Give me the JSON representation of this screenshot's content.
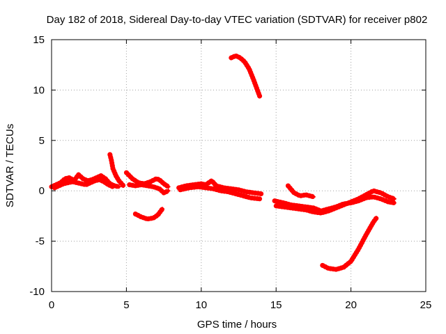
{
  "chart_data": {
    "type": "scatter",
    "title": "Day 182 of 2018, Sidereal Day-to-day VTEC variation (SDTVAR) for receiver p802",
    "xlabel": "GPS time / hours",
    "ylabel": "SDTVAR / TECUs",
    "xlim": [
      0,
      25
    ],
    "ylim": [
      -10,
      15
    ],
    "xticks": [
      0,
      5,
      10,
      15,
      20,
      25
    ],
    "xtick_labels": [
      "0",
      "5",
      "10",
      "15",
      "20",
      "25"
    ],
    "yticks": [
      -10,
      -5,
      0,
      5,
      10,
      15
    ],
    "ytick_labels": [
      "-10",
      "-5",
      "0",
      "5",
      "10",
      "15"
    ],
    "grid": true,
    "color": "#ff0000",
    "series": [
      {
        "name": "track-1",
        "points": [
          [
            0.0,
            0.4
          ],
          [
            0.3,
            0.6
          ],
          [
            0.6,
            0.8
          ],
          [
            0.9,
            1.2
          ],
          [
            1.2,
            1.3
          ],
          [
            1.5,
            1.0
          ],
          [
            1.8,
            1.6
          ],
          [
            2.1,
            1.2
          ],
          [
            2.4,
            1.0
          ],
          [
            2.7,
            1.1
          ],
          [
            3.0,
            1.3
          ],
          [
            3.3,
            1.5
          ],
          [
            3.6,
            1.2
          ],
          [
            3.9,
            0.7
          ],
          [
            4.2,
            0.5
          ],
          [
            4.5,
            0.4
          ]
        ]
      },
      {
        "name": "track-2",
        "points": [
          [
            0.2,
            0.3
          ],
          [
            0.5,
            0.5
          ],
          [
            0.8,
            0.7
          ],
          [
            1.1,
            0.8
          ],
          [
            1.4,
            0.9
          ],
          [
            1.7,
            0.8
          ],
          [
            2.0,
            0.7
          ],
          [
            2.3,
            0.6
          ],
          [
            2.6,
            0.8
          ],
          [
            2.9,
            1.0
          ],
          [
            3.2,
            1.1
          ],
          [
            3.5,
            0.9
          ],
          [
            3.8,
            0.6
          ],
          [
            4.1,
            0.4
          ]
        ]
      },
      {
        "name": "track-3",
        "points": [
          [
            3.9,
            3.6
          ],
          [
            4.0,
            3.0
          ],
          [
            4.1,
            2.2
          ],
          [
            4.3,
            1.5
          ],
          [
            4.5,
            1.0
          ],
          [
            4.8,
            0.5
          ]
        ]
      },
      {
        "name": "track-4",
        "points": [
          [
            5.0,
            1.8
          ],
          [
            5.4,
            1.2
          ],
          [
            5.8,
            0.8
          ],
          [
            6.2,
            0.7
          ],
          [
            6.6,
            0.9
          ],
          [
            7.0,
            1.2
          ],
          [
            7.2,
            1.1
          ],
          [
            7.5,
            0.7
          ],
          [
            7.8,
            0.4
          ]
        ]
      },
      {
        "name": "track-5",
        "points": [
          [
            5.2,
            0.6
          ],
          [
            5.6,
            0.5
          ],
          [
            6.0,
            0.6
          ],
          [
            6.4,
            0.5
          ],
          [
            6.8,
            0.4
          ],
          [
            7.2,
            0.2
          ],
          [
            7.5,
            -0.2
          ],
          [
            7.8,
            0.0
          ]
        ]
      },
      {
        "name": "track-6",
        "points": [
          [
            5.6,
            -2.3
          ],
          [
            6.0,
            -2.6
          ],
          [
            6.4,
            -2.8
          ],
          [
            6.8,
            -2.7
          ],
          [
            7.1,
            -2.4
          ],
          [
            7.4,
            -1.8
          ]
        ]
      },
      {
        "name": "track-7",
        "points": [
          [
            8.5,
            0.3
          ],
          [
            9.0,
            0.5
          ],
          [
            9.5,
            0.6
          ],
          [
            10.0,
            0.7
          ],
          [
            10.3,
            0.6
          ],
          [
            10.7,
            1.0
          ],
          [
            11.0,
            0.5
          ],
          [
            11.5,
            0.3
          ],
          [
            12.0,
            0.2
          ],
          [
            12.5,
            0.1
          ],
          [
            13.0,
            -0.1
          ],
          [
            13.5,
            -0.2
          ],
          [
            14.0,
            -0.3
          ]
        ]
      },
      {
        "name": "track-8",
        "points": [
          [
            8.6,
            0.1
          ],
          [
            9.2,
            0.3
          ],
          [
            9.8,
            0.4
          ],
          [
            10.3,
            0.3
          ],
          [
            10.8,
            0.2
          ],
          [
            11.3,
            0.0
          ],
          [
            11.8,
            -0.1
          ],
          [
            12.3,
            -0.3
          ],
          [
            12.8,
            -0.5
          ],
          [
            13.3,
            -0.7
          ],
          [
            13.9,
            -0.8
          ]
        ]
      },
      {
        "name": "track-9",
        "points": [
          [
            12.0,
            13.2
          ],
          [
            12.3,
            13.4
          ],
          [
            12.6,
            13.2
          ],
          [
            12.9,
            12.8
          ],
          [
            13.2,
            12.1
          ],
          [
            13.5,
            11.0
          ],
          [
            13.7,
            10.2
          ],
          [
            13.9,
            9.4
          ]
        ]
      },
      {
        "name": "track-10",
        "points": [
          [
            14.9,
            -1.0
          ],
          [
            15.5,
            -1.2
          ],
          [
            16.0,
            -1.4
          ],
          [
            16.5,
            -1.5
          ],
          [
            17.0,
            -1.6
          ],
          [
            17.5,
            -1.7
          ],
          [
            18.0,
            -2.0
          ],
          [
            18.5,
            -1.8
          ],
          [
            19.0,
            -1.6
          ],
          [
            19.5,
            -1.3
          ],
          [
            20.0,
            -1.2
          ],
          [
            20.5,
            -1.0
          ],
          [
            21.0,
            -0.7
          ],
          [
            21.5,
            -0.6
          ],
          [
            22.0,
            -0.8
          ],
          [
            22.5,
            -1.1
          ],
          [
            22.9,
            -1.2
          ]
        ]
      },
      {
        "name": "track-11",
        "points": [
          [
            15.0,
            -1.5
          ],
          [
            15.5,
            -1.6
          ],
          [
            16.0,
            -1.7
          ],
          [
            16.5,
            -1.8
          ],
          [
            17.0,
            -1.9
          ],
          [
            17.5,
            -2.1
          ],
          [
            18.0,
            -2.2
          ],
          [
            18.5,
            -2.0
          ],
          [
            19.0,
            -1.7
          ],
          [
            19.5,
            -1.4
          ],
          [
            20.0,
            -1.1
          ],
          [
            20.5,
            -0.8
          ],
          [
            21.0,
            -0.4
          ],
          [
            21.5,
            0.0
          ],
          [
            22.0,
            -0.2
          ],
          [
            22.5,
            -0.6
          ],
          [
            22.9,
            -0.8
          ]
        ]
      },
      {
        "name": "track-12",
        "points": [
          [
            15.8,
            0.5
          ],
          [
            16.2,
            -0.2
          ],
          [
            16.6,
            -0.5
          ],
          [
            17.0,
            -0.4
          ],
          [
            17.5,
            -0.6
          ]
        ]
      },
      {
        "name": "track-13",
        "points": [
          [
            18.1,
            -7.4
          ],
          [
            18.5,
            -7.7
          ],
          [
            19.0,
            -7.8
          ],
          [
            19.5,
            -7.6
          ],
          [
            20.0,
            -7.0
          ],
          [
            20.5,
            -5.8
          ],
          [
            21.0,
            -4.4
          ],
          [
            21.5,
            -3.1
          ],
          [
            21.7,
            -2.7
          ]
        ]
      }
    ]
  }
}
